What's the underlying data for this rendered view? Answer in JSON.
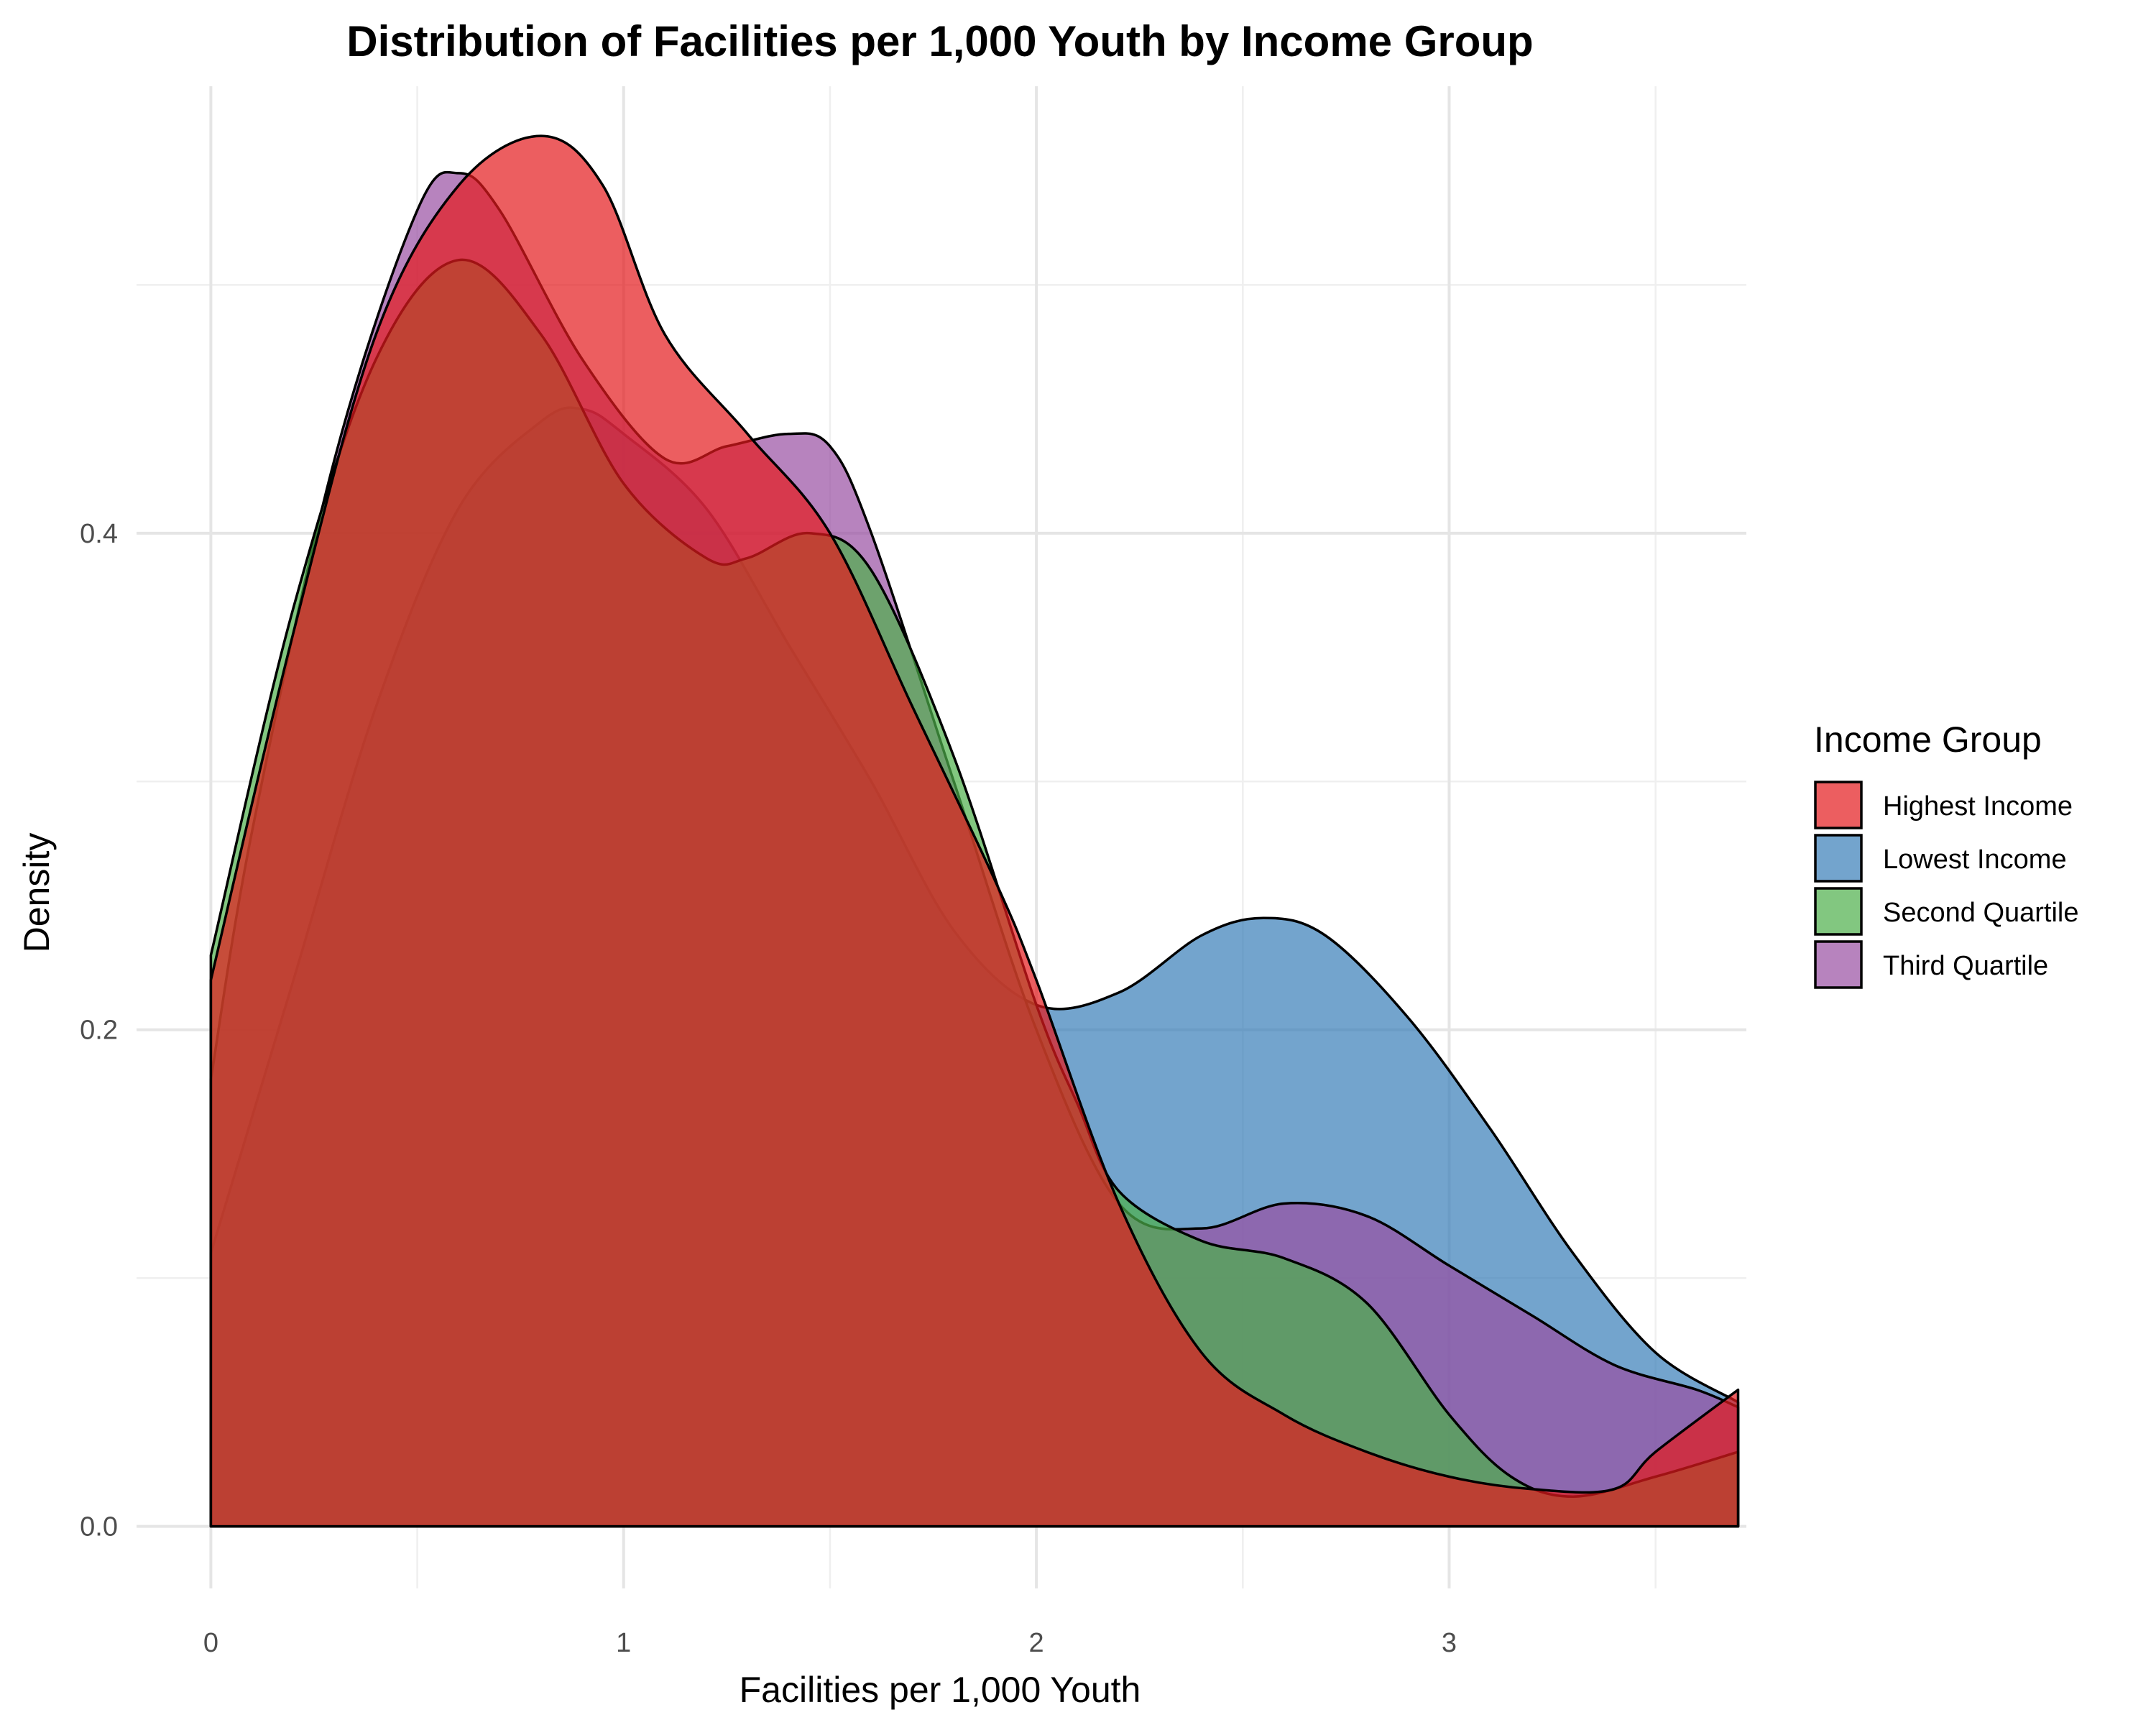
{
  "chart_data": {
    "type": "area",
    "title": "Distribution of Facilities per 1,000 Youth by Income Group",
    "xlabel": "Facilities per 1,000 Youth",
    "ylabel": "Density",
    "xlim": [
      -0.18,
      3.72
    ],
    "ylim": [
      -0.025,
      0.58
    ],
    "x_ticks": [
      0,
      1,
      2,
      3
    ],
    "x_tick_labels": [
      "0",
      "1",
      "2",
      "3"
    ],
    "y_ticks": [
      0.0,
      0.2,
      0.4
    ],
    "y_tick_labels": [
      "0.0",
      "0.2",
      "0.4"
    ],
    "grid": true,
    "fill_opacity": 0.7,
    "legend": {
      "title": "Income Group",
      "position": "right",
      "entries": [
        "Highest Income",
        "Lowest Income",
        "Second Quartile",
        "Third Quartile"
      ]
    },
    "series": [
      {
        "name": "Lowest Income",
        "color": "#377EB8",
        "x": [
          0,
          0.2,
          0.4,
          0.6,
          0.8,
          0.9,
          1.0,
          1.2,
          1.4,
          1.6,
          1.8,
          2.0,
          2.2,
          2.4,
          2.55,
          2.7,
          2.9,
          3.1,
          3.3,
          3.5,
          3.7
        ],
        "y": [
          0.11,
          0.22,
          0.33,
          0.41,
          0.445,
          0.45,
          0.44,
          0.41,
          0.355,
          0.3,
          0.24,
          0.21,
          0.215,
          0.238,
          0.245,
          0.238,
          0.205,
          0.16,
          0.11,
          0.07,
          0.05
        ]
      },
      {
        "name": "Third Quartile",
        "color": "#984EA3",
        "x": [
          0,
          0.1,
          0.3,
          0.5,
          0.6,
          0.7,
          0.9,
          1.1,
          1.25,
          1.4,
          1.5,
          1.6,
          1.8,
          2.0,
          2.2,
          2.4,
          2.6,
          2.8,
          3.0,
          3.2,
          3.4,
          3.6,
          3.7
        ],
        "y": [
          0.18,
          0.28,
          0.43,
          0.53,
          0.545,
          0.53,
          0.47,
          0.43,
          0.435,
          0.44,
          0.435,
          0.4,
          0.3,
          0.2,
          0.13,
          0.12,
          0.13,
          0.125,
          0.105,
          0.085,
          0.065,
          0.055,
          0.048
        ]
      },
      {
        "name": "Second Quartile",
        "color": "#4DAF4A",
        "x": [
          0,
          0.2,
          0.4,
          0.6,
          0.8,
          1.0,
          1.2,
          1.3,
          1.45,
          1.6,
          1.8,
          2.0,
          2.1,
          2.2,
          2.4,
          2.6,
          2.8,
          3.0,
          3.15,
          3.3,
          3.5,
          3.7
        ],
        "y": [
          0.23,
          0.37,
          0.47,
          0.51,
          0.48,
          0.42,
          0.39,
          0.39,
          0.4,
          0.385,
          0.31,
          0.21,
          0.17,
          0.135,
          0.115,
          0.108,
          0.09,
          0.045,
          0.02,
          0.012,
          0.02,
          0.03
        ]
      },
      {
        "name": "Highest Income",
        "color": "#E41A1C",
        "x": [
          0,
          0.2,
          0.4,
          0.6,
          0.8,
          0.95,
          1.1,
          1.3,
          1.5,
          1.7,
          1.9,
          2.0,
          2.2,
          2.4,
          2.6,
          2.8,
          3.0,
          3.2,
          3.4,
          3.5,
          3.7
        ],
        "y": [
          0.22,
          0.36,
          0.48,
          0.54,
          0.56,
          0.54,
          0.48,
          0.44,
          0.4,
          0.33,
          0.26,
          0.22,
          0.13,
          0.07,
          0.045,
          0.03,
          0.02,
          0.015,
          0.015,
          0.03,
          0.055
        ]
      }
    ]
  }
}
